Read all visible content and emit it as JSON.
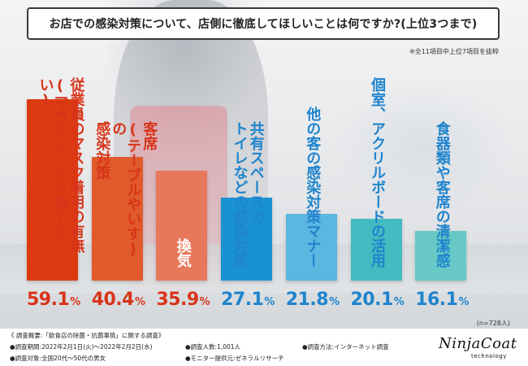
{
  "chart_data": {
    "type": "bar",
    "title": "お店での感染対策について、店側に徹底してほしいことは何ですか?(上位3つまで)",
    "note": "※全11項目中上位7項目を抜粋",
    "categories": [
      "従業員のマスク着用の有無(マウスシールド等でない)",
      "客席(テーブルやいす)の感染対策",
      "換気",
      "トイレなどの共有スペースの感染対策",
      "他の客の感染対策マナー",
      "個室、アクリルボードの活用",
      "食器類や客席の清潔感"
    ],
    "value_labels": [
      "59.1",
      "40.4",
      "35.9",
      "27.1",
      "21.8",
      "20.1",
      "16.1"
    ],
    "values": [
      59.1,
      40.4,
      35.9,
      27.1,
      21.8,
      20.1,
      16.1
    ],
    "unit": "%",
    "ylim": [
      0,
      65
    ],
    "sample_size": "(n=728人)",
    "colors": {
      "bar": [
        "#dc3a10",
        "#e05a2c",
        "#e8785c",
        "#1a92d2",
        "#5bb6e0",
        "#43bbc0",
        "#67c8c5"
      ],
      "value": [
        "#d8341a",
        "#d8341a",
        "#d8341a",
        "#1f84cd",
        "#1f84cd",
        "#1f84cd",
        "#1f84cd"
      ],
      "title_border": "#3a3a3a"
    }
  },
  "label_rows": [
    [
      "従業員のマスク着用の有無",
      "(マウスシールド等でない)"
    ],
    [
      "客席",
      "(テーブルやいす)の",
      "感染対策"
    ],
    [
      "換気"
    ],
    [
      "共有スペースの",
      "トイレなどの感染対策"
    ],
    [
      "他の客の感染対策マナー"
    ],
    [
      "個室、アクリルボードの活用"
    ],
    [
      "食器類や客席の清潔感"
    ]
  ],
  "footer": {
    "overview": "《 調査概要:「飲食店の除菌・抗菌事情」に関する調査》",
    "period": "●調査期間:2022年2月1日(火)〜2022年2月2日(水)",
    "target": "●調査対象:全国20代〜50代の男女",
    "count": "●調査人数:1,001人",
    "monitor": "●モニター提供元:ゼネラルリサーチ",
    "method": "●調査方法:インターネット調査"
  },
  "logo": {
    "name": "NinjaCoat",
    "sub": "technology"
  }
}
